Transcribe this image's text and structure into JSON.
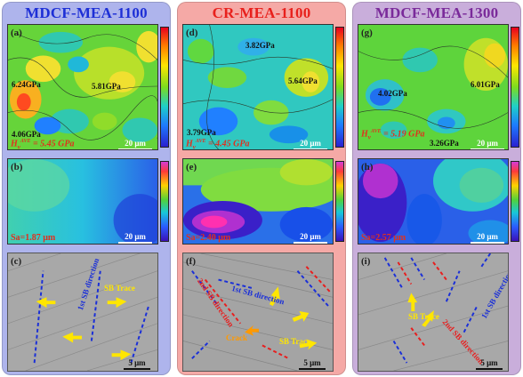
{
  "columns": [
    {
      "title": "MDCF-MEA-1100",
      "title_color": "#1d2fd6",
      "bg_color": "#aeb4ec",
      "panels": {
        "map": {
          "label": "(a)",
          "annotations": [
            "6.24GPa",
            "5.81GPa",
            "4.06GPa"
          ],
          "hv_label": "H",
          "hv_sub": "v",
          "hv_sup": "AVE",
          "hv_value": "= 5.45 GPa",
          "scale": "20 μm"
        },
        "rough": {
          "label": "(b)",
          "sa": "Sa=1.87 μm",
          "scale": "20 μm"
        },
        "sem": {
          "label": "(c)",
          "annotations": [
            "SB Trace",
            "1st SB direction"
          ],
          "scale": "5 μm"
        }
      }
    },
    {
      "title": "CR-MEA-1100",
      "title_color": "#e8201c",
      "bg_color": "#f5a9a6",
      "panels": {
        "map": {
          "label": "(d)",
          "annotations": [
            "3.82GPa",
            "5.64GPa",
            "3.79GPa"
          ],
          "hv_label": "H",
          "hv_sub": "v",
          "hv_sup": "AVE",
          "hv_value": "= 4.45 GPa",
          "scale": "20 μm"
        },
        "rough": {
          "label": "(e)",
          "sa": "Sa=2.40 μm",
          "scale": "20 μm"
        },
        "sem": {
          "label": "(f)",
          "annotations": [
            "1st SB direction",
            "2nd SB direction",
            "Crack",
            "SB Trace"
          ],
          "scale": "5 μm"
        }
      }
    },
    {
      "title": "MDCF-MEA-1300",
      "title_color": "#7a2a9a",
      "bg_color": "#c9aedb",
      "panels": {
        "map": {
          "label": "(g)",
          "annotations": [
            "4.02GPa",
            "6.01GPa",
            "3.26GPa"
          ],
          "hv_label": "H",
          "hv_sub": "v",
          "hv_sup": "AVE",
          "hv_value": "= 5.19 GPa",
          "scale": "20 μm"
        },
        "rough": {
          "label": "(h)",
          "sa": "Sa=2.57 μm",
          "scale": "20 μm"
        },
        "sem": {
          "label": "(i)",
          "annotations": [
            "SB Trace",
            "1st SB direction",
            "2nd SB direction"
          ],
          "scale": "5 μm"
        }
      }
    }
  ],
  "colorbars": {
    "map_ticks": [
      "7.0",
      "6.5",
      "6.0",
      "5.5",
      "5.0",
      "4.5",
      "4.0",
      "3.5",
      "3.0"
    ],
    "rough_ticks": [
      "10",
      "8",
      "6",
      "4",
      "2",
      "0",
      "-2",
      "-4",
      "-6",
      "-8",
      "-10"
    ]
  },
  "colors": {
    "annotation_red": "#e0301e",
    "arrow_yellow": "#ffe600",
    "dash_blue": "#1a2fd8",
    "dash_red": "#e81e1e",
    "crack_orange": "#ff9900"
  }
}
